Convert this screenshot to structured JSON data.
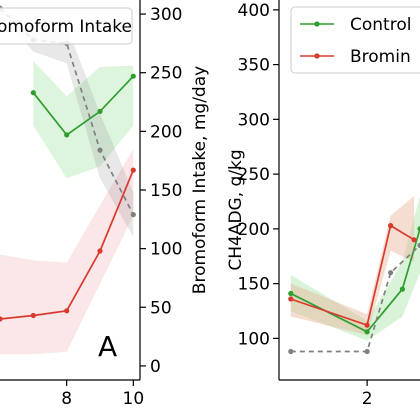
{
  "chart_data": [
    {
      "type": "line",
      "panel_label": "A",
      "x_ticks": [
        8,
        10
      ],
      "x_tick_labels": [
        "8",
        "10"
      ],
      "xlim": [
        6.0,
        10.2
      ],
      "ylabel_right": "Bromoform Intake, mg/day",
      "ylim_right": [
        -12,
        312
      ],
      "y_ticks_right": [
        0,
        50,
        100,
        150,
        200,
        250,
        300
      ],
      "y_tick_labels_right": [
        "0",
        "50",
        "100",
        "150",
        "200",
        "250",
        "300"
      ],
      "legend": {
        "position": "top",
        "label_partial": "omoform Intake"
      },
      "series": [
        {
          "color": "#2e9e2e",
          "band_color": "#9fe09f",
          "axis": "left",
          "x": [
            7,
            8,
            9,
            10
          ],
          "y": [
            233,
            197,
            217,
            247
          ],
          "band_lo": [
            205,
            160,
            170,
            205
          ],
          "band_hi": [
            260,
            230,
            255,
            256
          ]
        },
        {
          "color": "#d93a2e",
          "band_color": "#f4b8bc",
          "axis": "left",
          "x": [
            6,
            7,
            8,
            9,
            10
          ],
          "y": [
            40,
            43,
            47,
            98,
            167
          ],
          "band_lo": [
            10,
            10,
            12,
            70,
            128
          ],
          "band_hi": [
            95,
            90,
            88,
            137,
            185
          ]
        },
        {
          "color": "#808080",
          "dashed": true,
          "axis": "right",
          "x": [
            6,
            7,
            8,
            9,
            10
          ],
          "y": [
            305,
            278,
            275,
            184,
            129
          ],
          "band_lo": [
            300,
            268,
            258,
            160,
            110
          ],
          "band_hi": [
            308,
            285,
            290,
            215,
            148
          ]
        }
      ]
    },
    {
      "type": "line",
      "x_ticks": [
        2
      ],
      "x_tick_labels": [
        "2"
      ],
      "xlim": [
        1.25,
        2.45
      ],
      "ylabel": "CH4ADG, g/kg",
      "ylim": [
        62,
        409
      ],
      "y_ticks": [
        100,
        150,
        200,
        250,
        300,
        350,
        400
      ],
      "y_tick_labels": [
        "100",
        "150",
        "200",
        "250",
        "300",
        "350",
        "400"
      ],
      "legend": {
        "position": "top",
        "entries": [
          {
            "label": "Control",
            "color": "#2e9e2e"
          },
          {
            "label": "Bromin",
            "color": "#d93a2e"
          }
        ]
      },
      "series": [
        {
          "name": "Control",
          "color": "#2e9e2e",
          "band_color": "#a8e4a8",
          "x": [
            1.35,
            2.0,
            2.3,
            2.45
          ],
          "y": [
            141,
            106,
            145,
            200
          ],
          "band_lo": [
            125,
            98,
            120,
            160
          ],
          "band_hi": [
            158,
            116,
            170,
            230
          ]
        },
        {
          "name": "Bromin",
          "color": "#d93a2e",
          "band_color": "#e8b49a",
          "x": [
            1.35,
            2.0,
            2.2,
            2.4
          ],
          "y": [
            136,
            112,
            203,
            190
          ],
          "band_lo": [
            120,
            103,
            180,
            170
          ],
          "band_hi": [
            150,
            122,
            212,
            230
          ]
        },
        {
          "color": "#808080",
          "dashed": true,
          "x": [
            1.35,
            2.0,
            2.2,
            2.45
          ],
          "y": [
            88,
            88,
            160,
            185
          ]
        }
      ]
    }
  ]
}
